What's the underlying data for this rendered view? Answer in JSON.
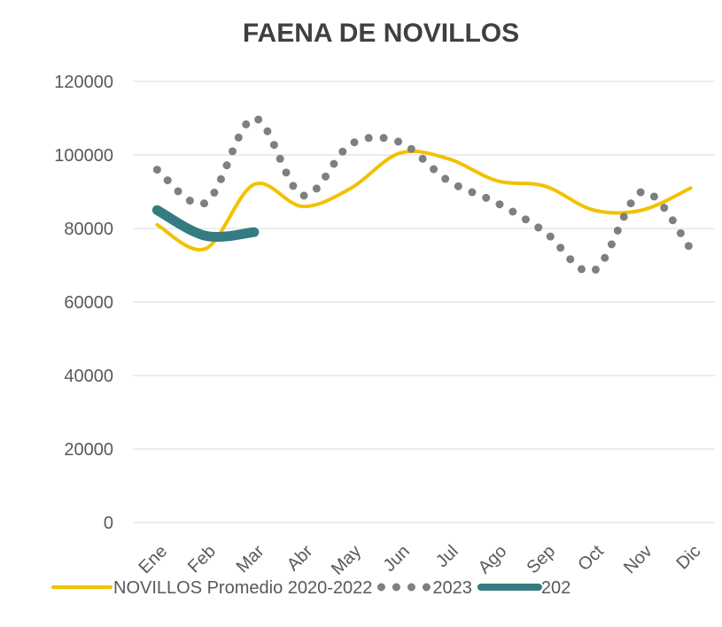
{
  "chart_data": {
    "type": "line",
    "title": "FAENA DE NOVILLOS",
    "categories": [
      "Ene",
      "Feb",
      "Mar",
      "Abr",
      "May",
      "Jun",
      "Jul",
      "Ago",
      "Sep",
      "Oct",
      "Nov",
      "Dic"
    ],
    "series": [
      {
        "name": "NOVILLOS Promedio 2020-2022",
        "color": "#f2c100",
        "style": "solid",
        "values": [
          81000,
          74500,
          92000,
          86000,
          91000,
          100500,
          99000,
          93000,
          91500,
          85000,
          85000,
          91000
        ]
      },
      {
        "name": "2023",
        "color": "#7f7f7f",
        "style": "dotted",
        "values": [
          96000,
          87000,
          110000,
          89000,
          103000,
          103500,
          93000,
          87000,
          79000,
          68500,
          90000,
          74500
        ]
      },
      {
        "name": "202",
        "color": "#357b82",
        "style": "thick",
        "values": [
          85000,
          78000,
          79000,
          null,
          null,
          null,
          null,
          null,
          null,
          null,
          null,
          null
        ]
      }
    ],
    "ylim": [
      0,
      120000
    ],
    "yticks": [
      0,
      20000,
      40000,
      60000,
      80000,
      100000,
      120000
    ],
    "grid": true,
    "legend": "bottom"
  }
}
